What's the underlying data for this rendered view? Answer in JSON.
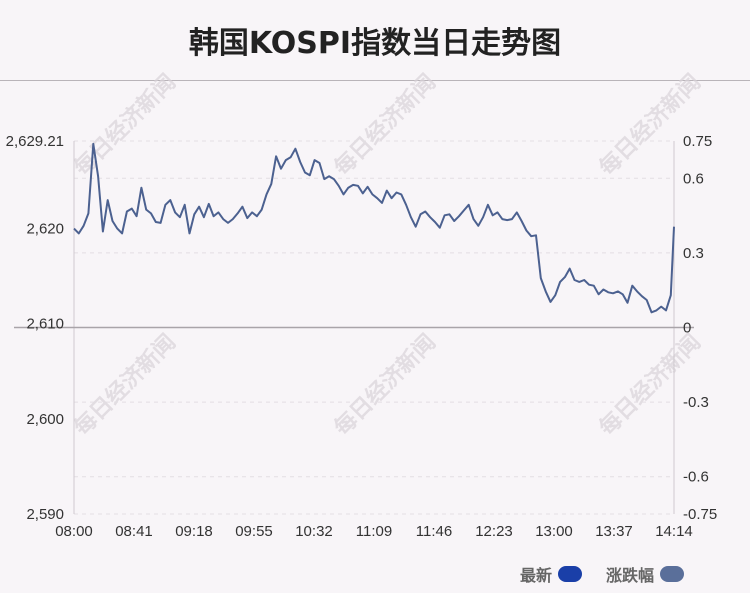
{
  "title": "韩国KOSPI指数当日走势图",
  "watermark": "每日经济新闻",
  "legend": {
    "latest_label": "最新",
    "latest_color": "#1a3fa8",
    "change_label": "涨跌幅",
    "change_color": "#5a6f9a"
  },
  "chart_data": {
    "type": "line",
    "series_color": "#4c6190",
    "left_axis": {
      "ylim": [
        2590,
        2629.21
      ],
      "ticks": [
        2629.21,
        2620,
        2610,
        2600,
        2590
      ],
      "tick_labels": [
        "2,629.21",
        "2,620",
        "2,610",
        "2,600",
        "2,590"
      ]
    },
    "right_axis": {
      "ylim": [
        -0.75,
        0.75
      ],
      "ticks": [
        0.75,
        0.6,
        0.3,
        0,
        -0.3,
        -0.6,
        -0.75
      ],
      "tick_labels": [
        "0.75",
        "0.6",
        "0.3",
        "0",
        "-0.3",
        "-0.6",
        "-0.75"
      ]
    },
    "x_ticks": [
      "08:00",
      "08:41",
      "09:18",
      "09:55",
      "10:32",
      "11:09",
      "11:46",
      "12:23",
      "13:00",
      "13:37",
      "14:14"
    ],
    "x_range_min": [
      0,
      374
    ],
    "x": [
      0,
      3,
      6,
      9,
      12,
      15,
      18,
      21,
      24,
      27,
      30,
      33,
      36,
      39,
      42,
      45,
      48,
      51,
      54,
      57,
      60,
      63,
      66,
      69,
      72,
      75,
      78,
      81,
      84,
      87,
      90,
      93,
      96,
      99,
      102,
      105,
      108,
      111,
      114,
      117,
      120,
      123,
      126,
      129,
      132,
      135,
      138,
      141,
      144,
      147,
      150,
      153,
      156,
      159,
      162,
      165,
      168,
      171,
      174,
      177,
      180,
      183,
      186,
      189,
      192,
      195,
      198,
      201,
      204,
      207,
      210,
      213,
      216,
      219,
      222,
      225,
      228,
      231,
      234,
      237,
      240,
      243,
      246,
      249,
      252,
      255,
      258,
      261,
      264,
      267,
      270,
      273,
      276,
      279,
      282,
      285,
      288,
      291,
      294,
      297,
      300,
      303,
      306,
      309,
      312,
      315,
      318,
      321,
      324,
      327,
      330,
      333,
      336,
      339,
      342,
      345,
      348,
      351,
      354,
      357,
      360,
      363,
      366,
      369,
      372,
      374
    ],
    "values": [
      2620.0,
      2619.5,
      2620.3,
      2621.6,
      2628.9,
      2625.5,
      2619.7,
      2623.0,
      2620.8,
      2620.0,
      2619.5,
      2621.8,
      2622.1,
      2621.3,
      2624.3,
      2622.0,
      2621.6,
      2620.7,
      2620.6,
      2622.5,
      2623.0,
      2621.7,
      2621.2,
      2622.5,
      2619.5,
      2621.5,
      2622.3,
      2621.2,
      2622.6,
      2621.3,
      2621.7,
      2621.0,
      2620.6,
      2621.0,
      2621.6,
      2622.3,
      2621.1,
      2621.7,
      2621.3,
      2622.0,
      2623.6,
      2624.7,
      2627.6,
      2626.3,
      2627.2,
      2627.5,
      2628.4,
      2627.0,
      2625.9,
      2625.6,
      2627.2,
      2626.9,
      2625.2,
      2625.5,
      2625.2,
      2624.5,
      2623.6,
      2624.3,
      2624.6,
      2624.5,
      2623.7,
      2624.4,
      2623.6,
      2623.2,
      2622.7,
      2624.0,
      2623.2,
      2623.8,
      2623.6,
      2622.5,
      2621.2,
      2620.2,
      2621.5,
      2621.8,
      2621.2,
      2620.7,
      2620.1,
      2621.4,
      2621.5,
      2620.8,
      2621.3,
      2621.9,
      2622.5,
      2621.0,
      2620.3,
      2621.2,
      2622.5,
      2621.4,
      2621.7,
      2621.0,
      2620.9,
      2621.0,
      2621.7,
      2620.8,
      2619.8,
      2619.2,
      2619.3,
      2614.8,
      2613.4,
      2612.3,
      2613.0,
      2614.4,
      2614.9,
      2615.8,
      2614.6,
      2614.4,
      2614.6,
      2614.1,
      2614.0,
      2613.1,
      2613.6,
      2613.3,
      2613.2,
      2613.4,
      2613.1,
      2612.2,
      2614.0,
      2613.4,
      2612.9,
      2612.5,
      2611.2,
      2611.4,
      2611.8,
      2611.4,
      2613.0,
      2620.2
    ]
  }
}
